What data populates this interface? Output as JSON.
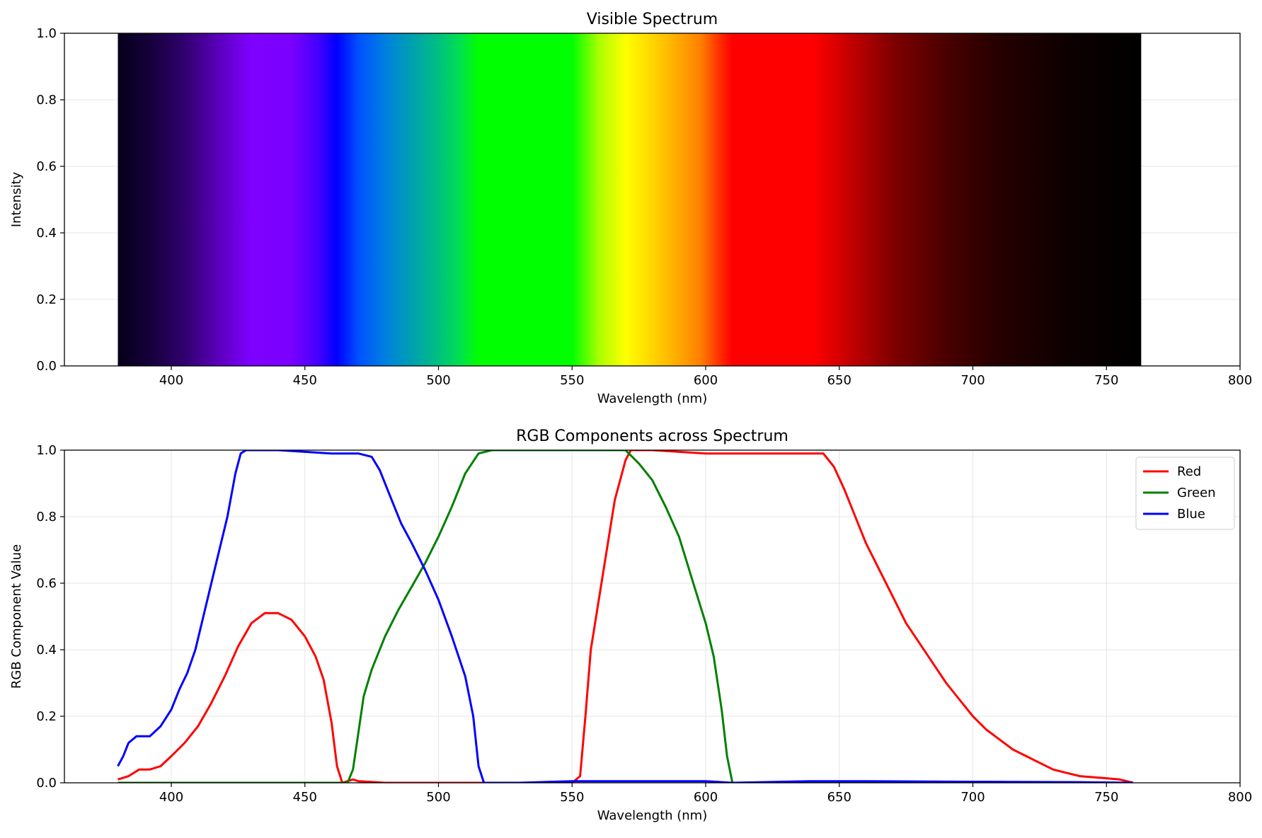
{
  "chart_data": [
    {
      "type": "heatmap",
      "title": "Visible Spectrum",
      "xlabel": "Wavelength (nm)",
      "ylabel": "Intensity",
      "xlim": [
        360,
        800
      ],
      "ylim": [
        0,
        1
      ],
      "xticks": [
        400,
        450,
        500,
        550,
        600,
        650,
        700,
        750,
        800
      ],
      "yticks": [
        "0.0",
        "0.2",
        "0.4",
        "0.6",
        "0.8",
        "1.0"
      ],
      "grid": true,
      "band_range": [
        380,
        763
      ],
      "color_stops": [
        {
          "nm": 380,
          "color": "#04001a"
        },
        {
          "nm": 392,
          "color": "#15003a"
        },
        {
          "nm": 405,
          "color": "#31006e"
        },
        {
          "nm": 420,
          "color": "#6200c8"
        },
        {
          "nm": 430,
          "color": "#7f00ff"
        },
        {
          "nm": 445,
          "color": "#7a00ff"
        },
        {
          "nm": 455,
          "color": "#4400ff"
        },
        {
          "nm": 462,
          "color": "#0000ff"
        },
        {
          "nm": 470,
          "color": "#0050ff"
        },
        {
          "nm": 480,
          "color": "#0080e0"
        },
        {
          "nm": 490,
          "color": "#00a0b0"
        },
        {
          "nm": 500,
          "color": "#00c080"
        },
        {
          "nm": 508,
          "color": "#00e050"
        },
        {
          "nm": 515,
          "color": "#00ff00"
        },
        {
          "nm": 550,
          "color": "#00ff00"
        },
        {
          "nm": 560,
          "color": "#aaff00"
        },
        {
          "nm": 570,
          "color": "#ffff00"
        },
        {
          "nm": 585,
          "color": "#ffc000"
        },
        {
          "nm": 598,
          "color": "#ff8000"
        },
        {
          "nm": 605,
          "color": "#ff3000"
        },
        {
          "nm": 610,
          "color": "#ff0000"
        },
        {
          "nm": 640,
          "color": "#ff0000"
        },
        {
          "nm": 655,
          "color": "#c00000"
        },
        {
          "nm": 670,
          "color": "#800000"
        },
        {
          "nm": 690,
          "color": "#4a0000"
        },
        {
          "nm": 710,
          "color": "#250000"
        },
        {
          "nm": 735,
          "color": "#0e0000"
        },
        {
          "nm": 763,
          "color": "#000000"
        }
      ]
    },
    {
      "type": "line",
      "title": "RGB Components across Spectrum",
      "xlabel": "Wavelength (nm)",
      "ylabel": "RGB Component Value",
      "xlim": [
        360,
        800
      ],
      "ylim": [
        0,
        1
      ],
      "xticks": [
        400,
        450,
        500,
        550,
        600,
        650,
        700,
        750,
        800
      ],
      "yticks": [
        "0.0",
        "0.2",
        "0.4",
        "0.6",
        "0.8",
        "1.0"
      ],
      "grid": true,
      "legend_position": "top-right",
      "series": [
        {
          "name": "Red",
          "color": "#ff0000",
          "points": [
            [
              380,
              0.01
            ],
            [
              384,
              0.02
            ],
            [
              388,
              0.04
            ],
            [
              392,
              0.04
            ],
            [
              396,
              0.05
            ],
            [
              400,
              0.08
            ],
            [
              405,
              0.12
            ],
            [
              410,
              0.17
            ],
            [
              415,
              0.24
            ],
            [
              420,
              0.32
            ],
            [
              425,
              0.41
            ],
            [
              430,
              0.48
            ],
            [
              435,
              0.51
            ],
            [
              440,
              0.51
            ],
            [
              445,
              0.49
            ],
            [
              450,
              0.44
            ],
            [
              454,
              0.38
            ],
            [
              457,
              0.31
            ],
            [
              460,
              0.18
            ],
            [
              462,
              0.05
            ],
            [
              464,
              0.0
            ],
            [
              468,
              0.01
            ],
            [
              470,
              0.005
            ],
            [
              480,
              0.0
            ],
            [
              500,
              0.0
            ],
            [
              520,
              0.0
            ],
            [
              540,
              0.0
            ],
            [
              550,
              0.0
            ],
            [
              553,
              0.02
            ],
            [
              555,
              0.2
            ],
            [
              557,
              0.4
            ],
            [
              560,
              0.55
            ],
            [
              563,
              0.7
            ],
            [
              566,
              0.85
            ],
            [
              570,
              0.97
            ],
            [
              572,
              1.0
            ],
            [
              580,
              1.0
            ],
            [
              600,
              0.99
            ],
            [
              620,
              0.99
            ],
            [
              640,
              0.99
            ],
            [
              644,
              0.99
            ],
            [
              648,
              0.95
            ],
            [
              652,
              0.88
            ],
            [
              656,
              0.8
            ],
            [
              660,
              0.72
            ],
            [
              665,
              0.64
            ],
            [
              670,
              0.56
            ],
            [
              675,
              0.48
            ],
            [
              680,
              0.42
            ],
            [
              685,
              0.36
            ],
            [
              690,
              0.3
            ],
            [
              695,
              0.25
            ],
            [
              700,
              0.2
            ],
            [
              705,
              0.16
            ],
            [
              710,
              0.13
            ],
            [
              715,
              0.1
            ],
            [
              720,
              0.08
            ],
            [
              725,
              0.06
            ],
            [
              730,
              0.04
            ],
            [
              735,
              0.03
            ],
            [
              740,
              0.02
            ],
            [
              748,
              0.015
            ],
            [
              755,
              0.01
            ],
            [
              760,
              0.0
            ]
          ]
        },
        {
          "name": "Green",
          "color": "#008000",
          "points": [
            [
              380,
              0.0
            ],
            [
              400,
              0.0
            ],
            [
              420,
              0.0
            ],
            [
              440,
              0.0
            ],
            [
              460,
              0.0
            ],
            [
              466,
              0.0
            ],
            [
              468,
              0.04
            ],
            [
              470,
              0.15
            ],
            [
              472,
              0.26
            ],
            [
              475,
              0.34
            ],
            [
              480,
              0.44
            ],
            [
              485,
              0.52
            ],
            [
              490,
              0.59
            ],
            [
              495,
              0.66
            ],
            [
              500,
              0.74
            ],
            [
              505,
              0.83
            ],
            [
              510,
              0.93
            ],
            [
              515,
              0.99
            ],
            [
              520,
              1.0
            ],
            [
              540,
              1.0
            ],
            [
              560,
              1.0
            ],
            [
              570,
              1.0
            ],
            [
              575,
              0.96
            ],
            [
              580,
              0.91
            ],
            [
              585,
              0.83
            ],
            [
              590,
              0.74
            ],
            [
              595,
              0.61
            ],
            [
              600,
              0.48
            ],
            [
              603,
              0.38
            ],
            [
              606,
              0.22
            ],
            [
              608,
              0.08
            ],
            [
              610,
              0.0
            ],
            [
              620,
              0.0
            ],
            [
              650,
              0.0
            ],
            [
              700,
              0.0
            ],
            [
              760,
              0.0
            ]
          ]
        },
        {
          "name": "Blue",
          "color": "#0000ff",
          "points": [
            [
              380,
              0.05
            ],
            [
              382,
              0.08
            ],
            [
              384,
              0.12
            ],
            [
              387,
              0.14
            ],
            [
              392,
              0.14
            ],
            [
              396,
              0.17
            ],
            [
              400,
              0.22
            ],
            [
              403,
              0.28
            ],
            [
              406,
              0.33
            ],
            [
              409,
              0.4
            ],
            [
              412,
              0.5
            ],
            [
              415,
              0.6
            ],
            [
              418,
              0.7
            ],
            [
              421,
              0.8
            ],
            [
              424,
              0.93
            ],
            [
              426,
              0.99
            ],
            [
              428,
              1.0
            ],
            [
              440,
              1.0
            ],
            [
              460,
              0.99
            ],
            [
              470,
              0.99
            ],
            [
              475,
              0.98
            ],
            [
              478,
              0.94
            ],
            [
              482,
              0.86
            ],
            [
              486,
              0.78
            ],
            [
              490,
              0.72
            ],
            [
              495,
              0.64
            ],
            [
              500,
              0.55
            ],
            [
              505,
              0.44
            ],
            [
              510,
              0.32
            ],
            [
              513,
              0.2
            ],
            [
              515,
              0.05
            ],
            [
              517,
              0.0
            ],
            [
              530,
              0.0
            ],
            [
              550,
              0.005
            ],
            [
              560,
              0.005
            ],
            [
              580,
              0.005
            ],
            [
              600,
              0.005
            ],
            [
              610,
              0.0
            ],
            [
              640,
              0.005
            ],
            [
              660,
              0.005
            ],
            [
              700,
              0.003
            ],
            [
              740,
              0.002
            ],
            [
              760,
              0.0
            ]
          ]
        }
      ]
    }
  ]
}
